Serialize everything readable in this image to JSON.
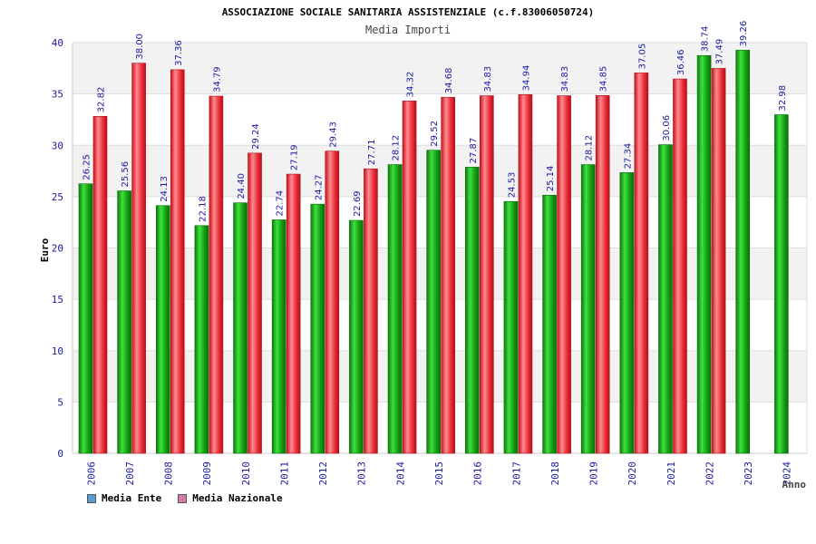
{
  "chart_data": {
    "type": "bar",
    "title": "ASSOCIAZIONE SOCIALE SANITARIA ASSISTENZIALE (c.f.83006050724)",
    "subtitle": "Media Importi",
    "xlabel": "Anno",
    "ylabel": "Euro",
    "ylim": [
      0,
      40
    ],
    "yticks": [
      "0",
      "5",
      "10",
      "15",
      "20",
      "25",
      "30",
      "35",
      "40"
    ],
    "categories": [
      "2006",
      "2007",
      "2008",
      "2009",
      "2010",
      "2011",
      "2012",
      "2013",
      "2014",
      "2015",
      "2016",
      "2017",
      "2018",
      "2019",
      "2020",
      "2021",
      "2022",
      "2023",
      "2024"
    ],
    "series": [
      {
        "name": "Media Ente",
        "color": "#1aa31a",
        "values": [
          26.25,
          25.56,
          24.13,
          22.18,
          24.4,
          22.74,
          24.27,
          22.69,
          28.12,
          29.52,
          27.87,
          24.53,
          25.14,
          28.12,
          27.34,
          30.06,
          38.74,
          39.26,
          32.98
        ],
        "labels": [
          "26.25",
          "25.56",
          "24.13",
          "22.18",
          "24.40",
          "22.74",
          "24.27",
          "22.69",
          "28.12",
          "29.52",
          "27.87",
          "24.53",
          "25.14",
          "28.12",
          "27.34",
          "30.06",
          "38.74",
          "39.26",
          "32.98"
        ]
      },
      {
        "name": "Media Nazionale",
        "color": "#e8303a",
        "values": [
          32.82,
          38.0,
          37.36,
          34.79,
          29.24,
          27.19,
          29.43,
          27.71,
          34.32,
          34.68,
          34.83,
          34.94,
          34.83,
          34.85,
          37.05,
          36.46,
          37.49,
          null,
          null
        ],
        "labels": [
          "32.82",
          "38.00",
          "37.36",
          "34.79",
          "29.24",
          "27.19",
          "29.43",
          "27.71",
          "34.32",
          "34.68",
          "34.83",
          "34.94",
          "34.83",
          "34.85",
          "37.05",
          "36.46",
          "37.49",
          null,
          null
        ]
      }
    ],
    "grid": true,
    "legend_position": "bottom-left"
  },
  "legend": {
    "ente_label": "Media Ente",
    "ente_swatch": "#5b9bd5",
    "nazionale_label": "Media Nazionale",
    "nazionale_swatch": "#d87aa8"
  }
}
